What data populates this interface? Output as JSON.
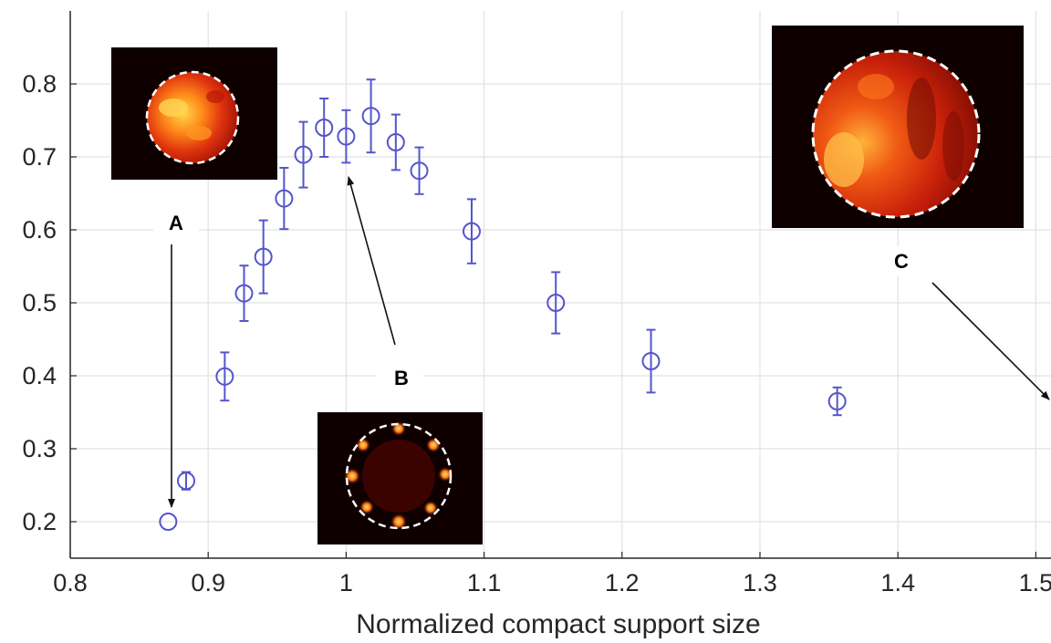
{
  "chart_data": {
    "type": "scatter",
    "xlabel": "Normalized compact support size",
    "ylabel": "",
    "xlim": [
      0.8,
      1.5
    ],
    "ylim": [
      0.15,
      0.88
    ],
    "xticks": [
      0.8,
      0.9,
      1.0,
      1.1,
      1.2,
      1.3,
      1.4,
      1.5
    ],
    "xtick_labels": [
      "0.8",
      "0.9",
      "1",
      "1.1",
      "1.2",
      "1.3",
      "1.4",
      "1.5"
    ],
    "yticks": [
      0.2,
      0.3,
      0.4,
      0.5,
      0.6,
      0.7,
      0.8
    ],
    "ytick_labels": [
      "0.2",
      "0.3",
      "0.4",
      "0.5",
      "0.6",
      "0.7",
      "0.8"
    ],
    "grid": true,
    "marker": "open-circle",
    "series": [
      {
        "color": "#5555cc",
        "points": [
          {
            "x": 0.871,
            "y": 0.2,
            "err": 0.0
          },
          {
            "x": 0.884,
            "y": 0.256,
            "err": 0.012
          },
          {
            "x": 0.912,
            "y": 0.399,
            "err": 0.033
          },
          {
            "x": 0.926,
            "y": 0.513,
            "err": 0.038
          },
          {
            "x": 0.94,
            "y": 0.563,
            "err": 0.05
          },
          {
            "x": 0.955,
            "y": 0.643,
            "err": 0.042
          },
          {
            "x": 0.969,
            "y": 0.703,
            "err": 0.045
          },
          {
            "x": 0.984,
            "y": 0.74,
            "err": 0.04
          },
          {
            "x": 1.0,
            "y": 0.728,
            "err": 0.036
          },
          {
            "x": 1.018,
            "y": 0.756,
            "err": 0.05
          },
          {
            "x": 1.036,
            "y": 0.72,
            "err": 0.038
          },
          {
            "x": 1.053,
            "y": 0.681,
            "err": 0.032
          },
          {
            "x": 1.091,
            "y": 0.598,
            "err": 0.044
          },
          {
            "x": 1.152,
            "y": 0.5,
            "err": 0.042
          },
          {
            "x": 1.221,
            "y": 0.42,
            "err": 0.043
          },
          {
            "x": 1.356,
            "y": 0.365,
            "err": 0.019
          }
        ]
      }
    ],
    "annotations": [
      {
        "label": "A",
        "target_x": 0.871,
        "target_y": 0.2
      },
      {
        "label": "B",
        "target_x": 1.0,
        "target_y": 0.728
      },
      {
        "label": "C"
      }
    ],
    "insets": [
      {
        "name": "A",
        "description": "bright disk"
      },
      {
        "name": "B",
        "description": "ring of spots"
      },
      {
        "name": "C",
        "description": "large disk"
      }
    ]
  },
  "colors": {
    "marker": "#5555cc",
    "grid": "#e2e2e2",
    "axis": "#262626",
    "inset_bg": "#0f0000",
    "inset_hot": "#ff8a1a",
    "inset_mid": "#d6280c"
  }
}
